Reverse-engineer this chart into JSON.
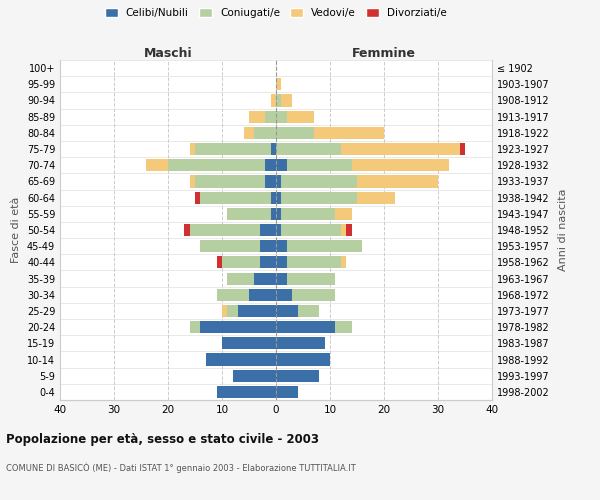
{
  "age_groups": [
    "100+",
    "95-99",
    "90-94",
    "85-89",
    "80-84",
    "75-79",
    "70-74",
    "65-69",
    "60-64",
    "55-59",
    "50-54",
    "45-49",
    "40-44",
    "35-39",
    "30-34",
    "25-29",
    "20-24",
    "15-19",
    "10-14",
    "5-9",
    "0-4"
  ],
  "birth_years": [
    "≤ 1902",
    "1903-1907",
    "1908-1912",
    "1913-1917",
    "1918-1922",
    "1923-1927",
    "1928-1932",
    "1933-1937",
    "1938-1942",
    "1943-1947",
    "1948-1952",
    "1953-1957",
    "1958-1962",
    "1963-1967",
    "1968-1972",
    "1973-1977",
    "1978-1982",
    "1983-1987",
    "1988-1992",
    "1993-1997",
    "1998-2002"
  ],
  "colors": {
    "celibi": "#3a6fa8",
    "coniugati": "#b5cfa0",
    "vedovi": "#f5c97a",
    "divorziati": "#d03030"
  },
  "males": {
    "celibi": [
      0,
      0,
      0,
      0,
      0,
      1,
      2,
      2,
      1,
      1,
      3,
      3,
      3,
      4,
      5,
      7,
      14,
      10,
      13,
      8,
      11
    ],
    "coniugati": [
      0,
      0,
      0,
      2,
      4,
      14,
      18,
      13,
      13,
      8,
      13,
      11,
      7,
      5,
      6,
      2,
      2,
      0,
      0,
      0,
      0
    ],
    "vedovi": [
      0,
      0,
      1,
      3,
      2,
      1,
      4,
      1,
      0,
      0,
      0,
      0,
      0,
      0,
      0,
      1,
      0,
      0,
      0,
      0,
      0
    ],
    "divorziati": [
      0,
      0,
      0,
      0,
      0,
      0,
      0,
      0,
      1,
      0,
      1,
      0,
      1,
      0,
      0,
      0,
      0,
      0,
      0,
      0,
      0
    ]
  },
  "females": {
    "celibi": [
      0,
      0,
      0,
      0,
      0,
      0,
      2,
      1,
      1,
      1,
      1,
      2,
      2,
      2,
      3,
      4,
      11,
      9,
      10,
      8,
      4
    ],
    "coniugati": [
      0,
      0,
      1,
      2,
      7,
      12,
      12,
      14,
      14,
      10,
      11,
      14,
      10,
      9,
      8,
      4,
      3,
      0,
      0,
      0,
      0
    ],
    "vedovi": [
      0,
      1,
      2,
      5,
      13,
      22,
      18,
      15,
      7,
      3,
      1,
      0,
      1,
      0,
      0,
      0,
      0,
      0,
      0,
      0,
      0
    ],
    "divorziati": [
      0,
      0,
      0,
      0,
      0,
      1,
      0,
      0,
      0,
      0,
      1,
      0,
      0,
      0,
      0,
      0,
      0,
      0,
      0,
      0,
      0
    ]
  },
  "xlim": 40,
  "title": "Popolazione per età, sesso e stato civile - 2003",
  "subtitle": "COMUNE DI BASICÒ (ME) - Dati ISTAT 1° gennaio 2003 - Elaborazione TUTTITALIA.IT",
  "ylabel_left": "Fasce di età",
  "ylabel_right": "Anni di nascita",
  "xlabel_left": "Maschi",
  "xlabel_right": "Femmine",
  "legend_labels": [
    "Celibi/Nubili",
    "Coniugati/e",
    "Vedovi/e",
    "Divorziati/e"
  ],
  "background_color": "#f5f5f5",
  "plot_bg_color": "#ffffff"
}
